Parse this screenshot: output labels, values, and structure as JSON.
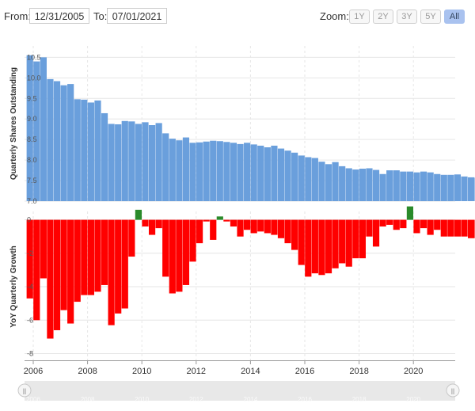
{
  "toolbar": {
    "from_label": "From:",
    "from_value": "12/31/2005",
    "to_label": "To:",
    "to_value": "07/01/2021",
    "zoom_label": "Zoom:",
    "zoom_buttons": [
      "1Y",
      "2Y",
      "3Y",
      "5Y",
      "All"
    ],
    "zoom_active": "All"
  },
  "colors": {
    "shares_bar": "#6a9fdc",
    "growth_negative": "#ff0000",
    "growth_positive": "#2a8a2a",
    "grid": "#e6e6e6",
    "navigator_bg": "#e8e8e8"
  },
  "chart_data": [
    {
      "type": "bar",
      "title": "",
      "ylabel": "Quarterly Shares Outstanding",
      "yticks": [
        "10.5",
        "10.0",
        "9.5",
        "9.0",
        "8.5",
        "8.0",
        "7.5",
        "7.0"
      ],
      "ylim": [
        7.0,
        10.7
      ],
      "x_start": 2005.875,
      "x_step": 0.25,
      "values": [
        10.55,
        10.4,
        10.5,
        9.97,
        9.92,
        9.82,
        9.85,
        9.48,
        9.47,
        9.4,
        9.45,
        9.14,
        8.88,
        8.87,
        8.95,
        8.94,
        8.88,
        8.92,
        8.85,
        8.9,
        8.65,
        8.52,
        8.48,
        8.55,
        8.42,
        8.43,
        8.45,
        8.47,
        8.46,
        8.44,
        8.42,
        8.39,
        8.42,
        8.38,
        8.35,
        8.31,
        8.35,
        8.28,
        8.23,
        8.18,
        8.11,
        8.07,
        8.05,
        7.96,
        7.9,
        7.95,
        7.85,
        7.8,
        7.77,
        7.79,
        7.8,
        7.76,
        7.66,
        7.75,
        7.75,
        7.72,
        7.72,
        7.7,
        7.72,
        7.7,
        7.66,
        7.64,
        7.64,
        7.65,
        7.6,
        7.58,
        7.57,
        7.56
      ]
    },
    {
      "type": "bar",
      "title": "",
      "ylabel": "YoY Quarterly Growth",
      "xlabel": "",
      "yticks": [
        "0",
        "-2",
        "-4",
        "-6",
        "-8"
      ],
      "ylim": [
        -8.4,
        0.5
      ],
      "x_ticks": [
        "2006",
        "2008",
        "2010",
        "2012",
        "2014",
        "2016",
        "2018",
        "2020"
      ],
      "x_start": 2005.875,
      "x_step": 0.25,
      "values": [
        -4.7,
        -6.0,
        -3.5,
        -7.1,
        -6.6,
        -5.4,
        -6.2,
        -4.9,
        -4.5,
        -4.5,
        -4.3,
        -3.9,
        -6.3,
        -5.6,
        -5.3,
        -2.2,
        0.6,
        -0.4,
        -0.9,
        -0.5,
        -3.4,
        -4.4,
        -4.3,
        -3.9,
        -2.5,
        -1.4,
        -0.1,
        -1.2,
        0.2,
        -0.1,
        -0.4,
        -1.0,
        -0.6,
        -0.8,
        -0.7,
        -0.8,
        -0.9,
        -1.1,
        -1.4,
        -1.8,
        -2.7,
        -3.4,
        -3.2,
        -3.3,
        -3.2,
        -2.9,
        -2.6,
        -2.8,
        -2.3,
        -2.3,
        -1.0,
        -1.6,
        -0.4,
        -0.3,
        -0.6,
        -0.5,
        0.8,
        -0.8,
        -0.5,
        -0.9,
        -0.6,
        -1.0,
        -1.0,
        -1.0,
        -1.0,
        -1.1,
        -1.1,
        -1.0
      ]
    }
  ],
  "navigator": {
    "labels": [
      "2006",
      "2008",
      "2010",
      "2012",
      "2014",
      "2016",
      "2018",
      "2020"
    ],
    "left_handle": "||",
    "right_handle": "||"
  }
}
